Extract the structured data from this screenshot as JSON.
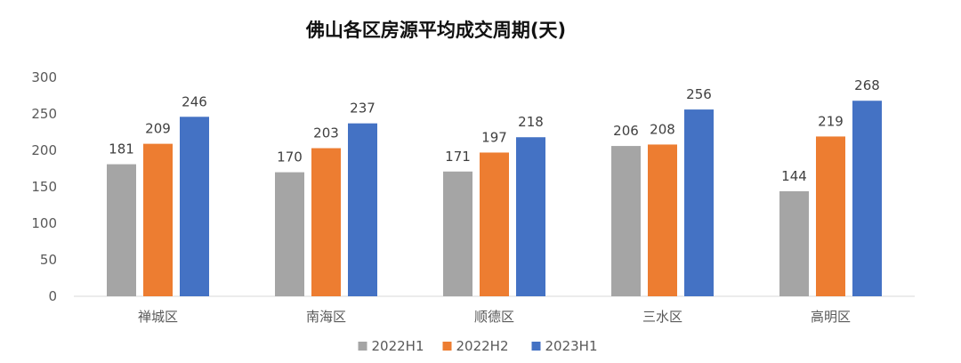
{
  "chart_data": {
    "type": "bar",
    "title": "佛山各区房源平均成交周期(天)",
    "xlabel": "",
    "ylabel": "",
    "categories": [
      "禅城区",
      "南海区",
      "顺德区",
      "三水区",
      "高明区"
    ],
    "series": [
      {
        "name": "2022H1",
        "color": "#A5A5A5",
        "values": [
          181,
          170,
          171,
          206,
          144
        ]
      },
      {
        "name": "2022H2",
        "color": "#ED7D31",
        "values": [
          209,
          203,
          197,
          208,
          219
        ]
      },
      {
        "name": "2023H1",
        "color": "#4472C4",
        "values": [
          246,
          237,
          218,
          256,
          268
        ]
      }
    ],
    "ylim": [
      0,
      300
    ],
    "yticks": [
      0,
      50,
      100,
      150,
      200,
      250,
      300
    ],
    "grid": false,
    "legend": "bottom"
  }
}
